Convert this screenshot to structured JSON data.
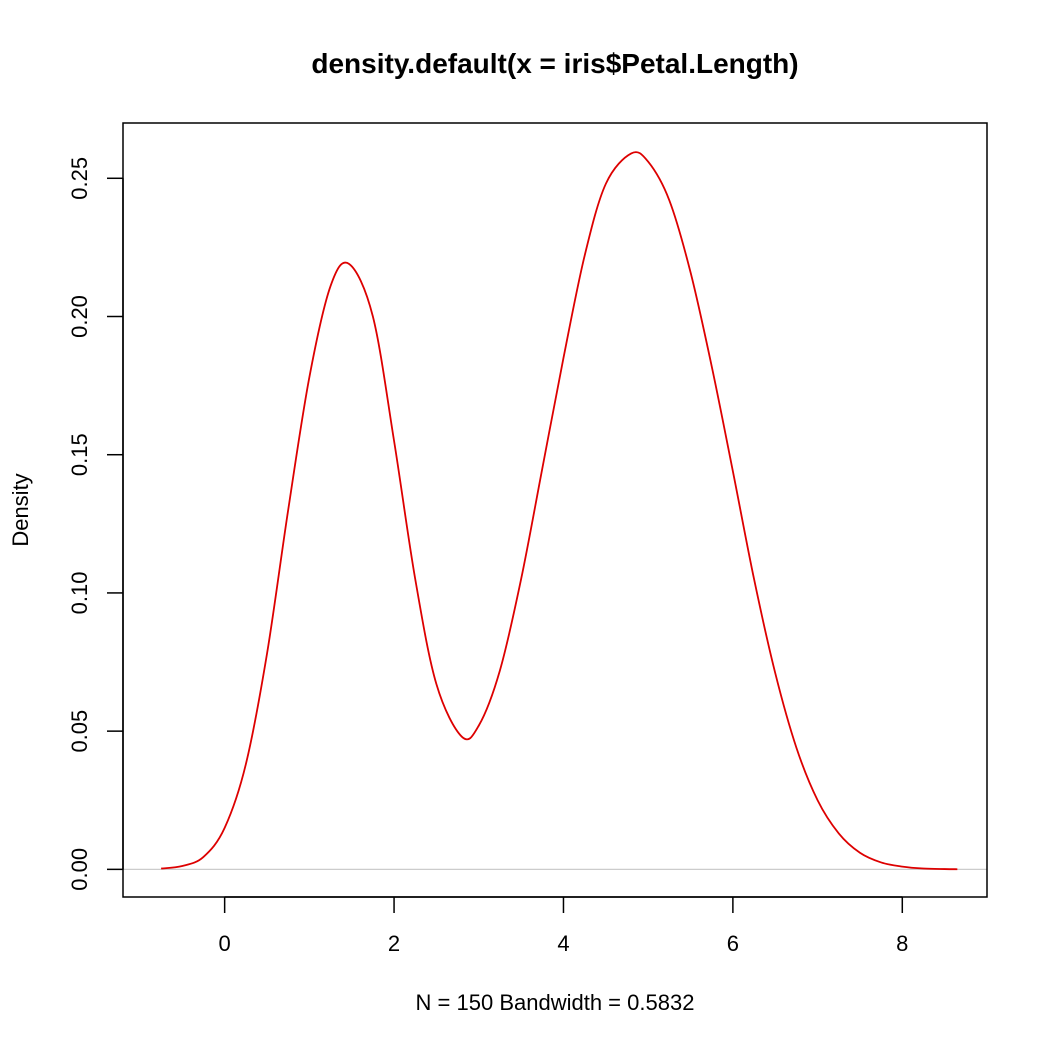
{
  "chart_data": {
    "type": "line",
    "title": "density.default(x = iris$Petal.Length)",
    "xlabel": "N = 150   Bandwidth = 0.5832",
    "ylabel": "Density",
    "xlim": [
      -1.2,
      9.0
    ],
    "ylim": [
      -0.01,
      0.27
    ],
    "x_ticks": [
      0,
      2,
      4,
      6,
      8
    ],
    "x_tick_labels": [
      "0",
      "2",
      "4",
      "6",
      "8"
    ],
    "y_ticks": [
      0.0,
      0.05,
      0.1,
      0.15,
      0.2,
      0.25
    ],
    "y_tick_labels": [
      "0.00",
      "0.05",
      "0.10",
      "0.15",
      "0.20",
      "0.25"
    ],
    "grid": false,
    "baseline": 0,
    "colors": {
      "line": "#dd0000",
      "baseline": "#cccccc",
      "frame": "#000000"
    },
    "series": [
      {
        "x": [
          -0.75,
          -0.5,
          -0.25,
          0.0,
          0.25,
          0.5,
          0.75,
          1.0,
          1.25,
          1.47,
          1.75,
          2.0,
          2.25,
          2.5,
          2.8,
          3.0,
          3.25,
          3.5,
          3.75,
          4.0,
          4.25,
          4.5,
          4.8,
          5.0,
          5.25,
          5.5,
          5.75,
          6.0,
          6.25,
          6.5,
          6.75,
          7.0,
          7.25,
          7.5,
          7.75,
          8.0,
          8.25,
          8.5,
          8.65
        ],
        "y": [
          0.0003,
          0.0012,
          0.0045,
          0.015,
          0.038,
          0.078,
          0.13,
          0.178,
          0.211,
          0.219,
          0.2,
          0.155,
          0.105,
          0.067,
          0.048,
          0.052,
          0.072,
          0.105,
          0.145,
          0.185,
          0.222,
          0.248,
          0.259,
          0.256,
          0.242,
          0.216,
          0.182,
          0.144,
          0.105,
          0.071,
          0.044,
          0.025,
          0.013,
          0.006,
          0.0025,
          0.001,
          0.0003,
          0.0001,
          5e-05
        ]
      }
    ]
  }
}
